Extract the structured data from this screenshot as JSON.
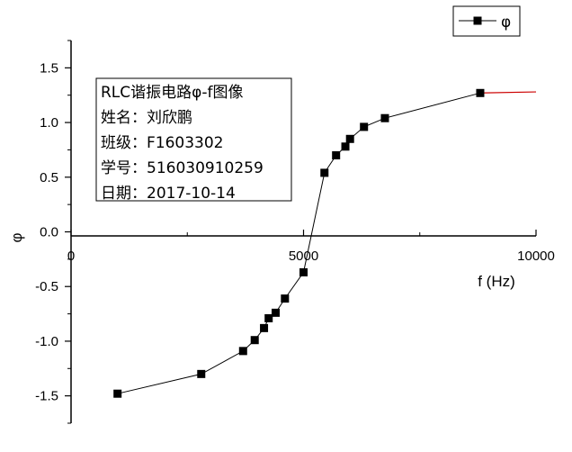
{
  "chart_data": {
    "type": "line",
    "xlabel": "f (Hz)",
    "ylabel": "φ",
    "xlim": [
      0,
      10000
    ],
    "ylim": [
      -1.75,
      1.75
    ],
    "xticks": [
      0,
      5000,
      10000
    ],
    "xtick_labels": [
      "0",
      "5000",
      "10000"
    ],
    "yticks": [
      -1.5,
      -1.0,
      -0.5,
      0.0,
      0.5,
      1.0,
      1.5
    ],
    "ytick_labels": [
      "-1.5",
      "-1.0",
      "-0.5",
      "0.0",
      "0.5",
      "1.0",
      "1.5"
    ],
    "grid": false,
    "legend_position": "top-right",
    "series": [
      {
        "name": "φ",
        "color": "#000000",
        "marker": "square",
        "x": [
          1000,
          2800,
          3700,
          3950,
          4150,
          4250,
          4400,
          4600,
          5000,
          5450,
          5700,
          5900,
          6000,
          6300,
          6750,
          8800
        ],
        "y": [
          -1.48,
          -1.3,
          -1.09,
          -0.99,
          -0.88,
          -0.79,
          -0.74,
          -0.61,
          -0.37,
          0.54,
          0.7,
          0.78,
          0.85,
          0.96,
          1.04,
          1.27
        ]
      }
    ],
    "extension_line": {
      "color": "#cc0000",
      "x": [
        8800,
        10000
      ],
      "y": [
        1.27,
        1.28
      ]
    },
    "annotation_lines": [
      "RLC谐振电路φ-f图像",
      "姓名：刘欣鹏",
      "班级：F1603302",
      "学号：516030910259",
      "日期：2017-10-14"
    ]
  }
}
